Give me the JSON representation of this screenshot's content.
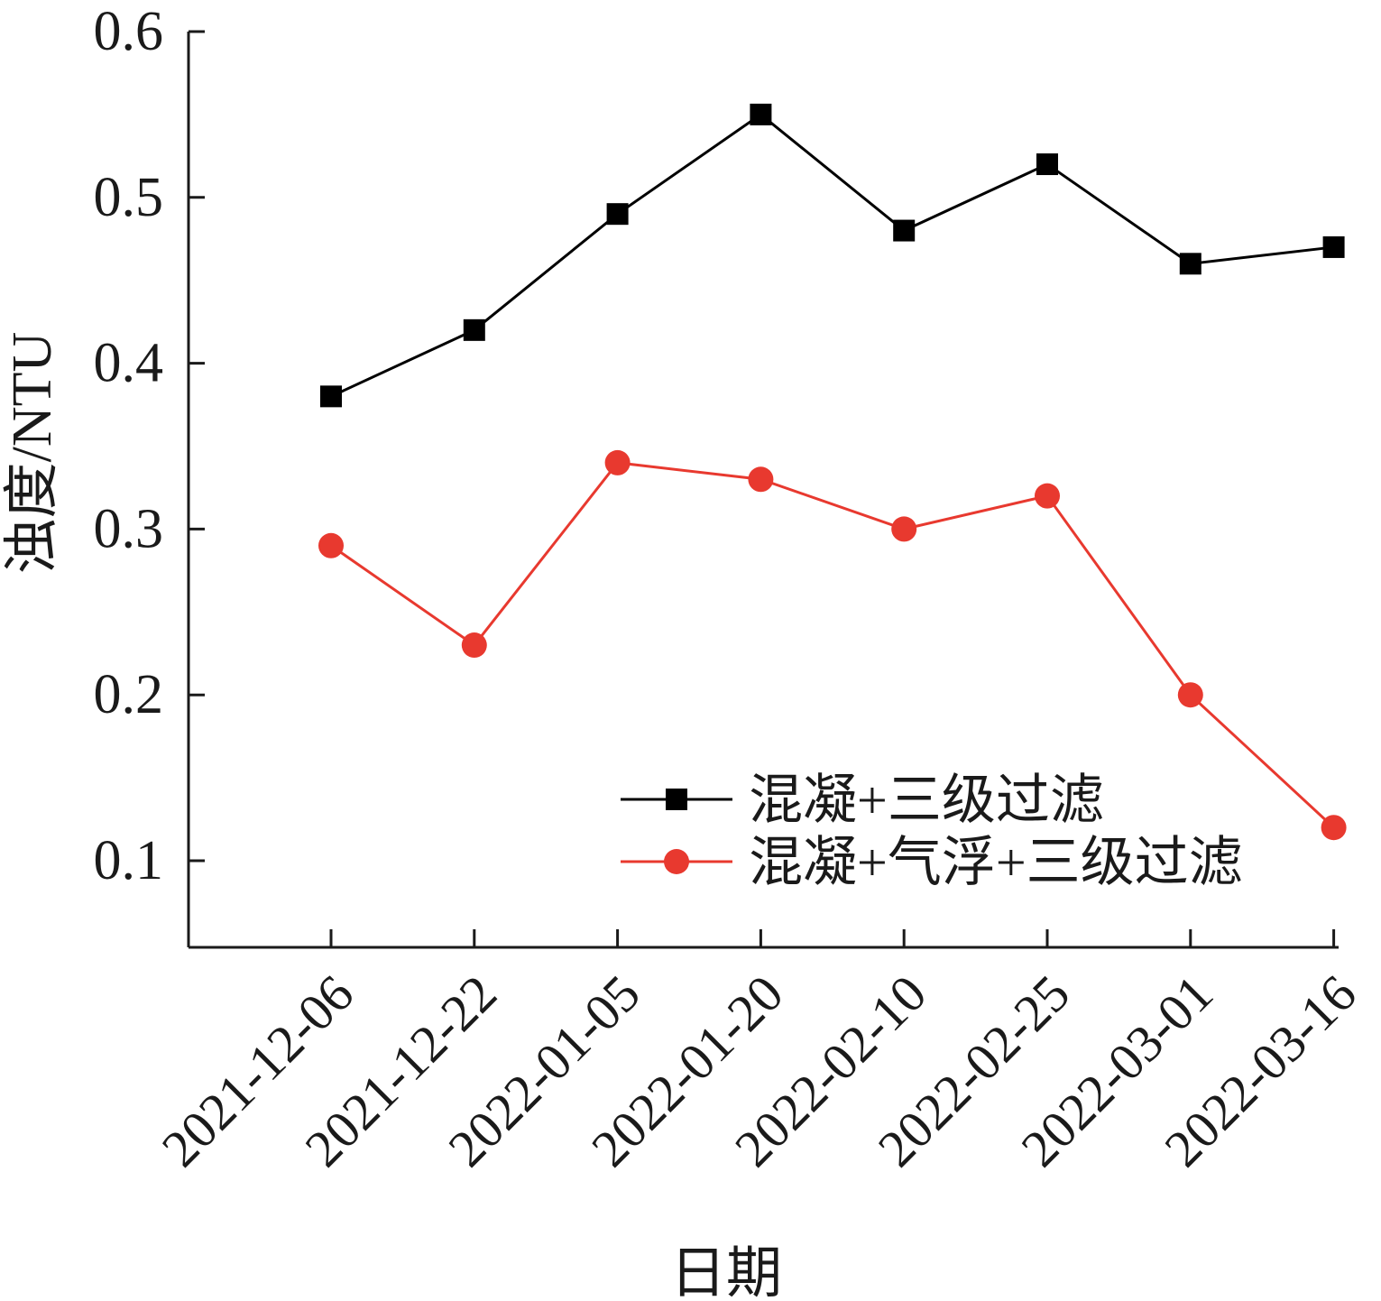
{
  "chart_data": {
    "type": "line",
    "xlabel": "日期",
    "ylabel": "浊度/NTU",
    "categories": [
      "2021-12-06",
      "2021-12-22",
      "2022-01-05",
      "2022-01-20",
      "2022-02-10",
      "2022-02-25",
      "2022-03-01",
      "2022-03-16"
    ],
    "ylim": [
      0.05,
      0.6
    ],
    "yticks": [
      "0.1",
      "0.2",
      "0.3",
      "0.4",
      "0.5",
      "0.6"
    ],
    "grid": false,
    "legend_position": "bottom-right",
    "series": [
      {
        "name": "混凝+三级过滤",
        "marker": "square",
        "color": "#000000",
        "values": [
          0.38,
          0.42,
          0.49,
          0.55,
          0.48,
          0.52,
          0.46,
          0.47
        ]
      },
      {
        "name": "混凝+气浮+三级过滤",
        "marker": "circle",
        "color": "#e8392f",
        "values": [
          0.29,
          0.23,
          0.34,
          0.33,
          0.3,
          0.32,
          0.2,
          0.12
        ]
      }
    ]
  }
}
